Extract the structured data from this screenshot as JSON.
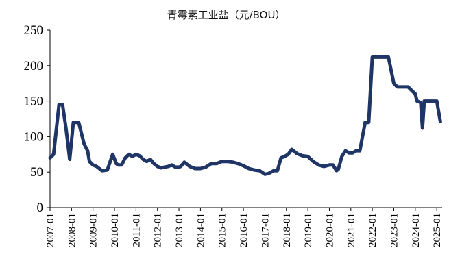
{
  "chart_data": {
    "type": "line",
    "title": "青霉素工业盐（元/BOU）",
    "xlabel": "",
    "ylabel": "",
    "ylim": [
      0,
      250
    ],
    "yticks": [
      0,
      50,
      100,
      150,
      200,
      250
    ],
    "xticks": [
      "2007-01",
      "2008-01",
      "2009-01",
      "2010-01",
      "2011-01",
      "2012-01",
      "2013-01",
      "2014-01",
      "2015-01",
      "2016-01",
      "2017-01",
      "2018-01",
      "2019-01",
      "2020-01",
      "2021-01",
      "2022-01",
      "2023-01",
      "2024-01",
      "2025-01"
    ],
    "grid": false,
    "legend": "none",
    "series_color": "#1f3566",
    "series": [
      {
        "x": [
          "2007-01",
          "2007-03",
          "2007-06",
          "2007-08",
          "2007-10",
          "2007-12",
          "2008-02",
          "2008-05",
          "2008-07",
          "2008-08",
          "2008-10",
          "2008-11",
          "2009-01",
          "2009-03",
          "2009-06",
          "2009-09",
          "2009-12",
          "2010-02",
          "2010-03",
          "2010-05",
          "2010-07",
          "2010-09",
          "2010-11",
          "2011-01",
          "2011-03",
          "2011-05",
          "2011-07",
          "2011-09",
          "2011-11",
          "2012-01",
          "2012-03",
          "2012-05",
          "2012-07",
          "2012-09",
          "2012-11",
          "2013-01",
          "2013-02",
          "2013-04",
          "2013-07",
          "2013-10",
          "2014-01",
          "2014-04",
          "2014-07",
          "2014-10",
          "2015-01",
          "2015-04",
          "2015-07",
          "2015-10",
          "2016-01",
          "2016-04",
          "2016-07",
          "2016-10",
          "2017-01",
          "2017-03",
          "2017-06",
          "2017-08",
          "2017-10",
          "2017-12",
          "2018-02",
          "2018-04",
          "2018-07",
          "2018-10",
          "2019-01",
          "2019-04",
          "2019-07",
          "2019-10",
          "2020-01",
          "2020-03",
          "2020-05",
          "2020-06",
          "2020-08",
          "2020-10",
          "2020-12",
          "2021-02",
          "2021-04",
          "2021-06",
          "2021-09",
          "2021-11",
          "2022-01",
          "2022-04",
          "2022-07",
          "2022-10",
          "2023-01",
          "2023-03",
          "2023-06",
          "2023-09",
          "2023-11",
          "2024-01",
          "2024-02",
          "2024-04",
          "2024-05",
          "2024-06",
          "2024-08",
          "2024-11",
          "2025-01",
          "2025-03"
        ],
        "values": [
          70,
          75,
          145,
          145,
          110,
          68,
          120,
          120,
          100,
          90,
          80,
          65,
          60,
          58,
          52,
          53,
          75,
          62,
          60,
          60,
          70,
          75,
          72,
          75,
          73,
          68,
          65,
          68,
          62,
          58,
          56,
          57,
          58,
          60,
          57,
          57,
          58,
          64,
          58,
          55,
          55,
          57,
          62,
          62,
          65,
          65,
          64,
          62,
          59,
          55,
          53,
          52,
          47,
          48,
          52,
          52,
          70,
          72,
          75,
          82,
          76,
          73,
          72,
          65,
          60,
          58,
          60,
          60,
          52,
          54,
          72,
          80,
          77,
          77,
          80,
          80,
          120,
          120,
          212,
          212,
          212,
          212,
          175,
          170,
          170,
          170,
          165,
          160,
          150,
          148,
          112,
          150,
          150,
          150,
          150,
          121
        ]
      }
    ]
  }
}
